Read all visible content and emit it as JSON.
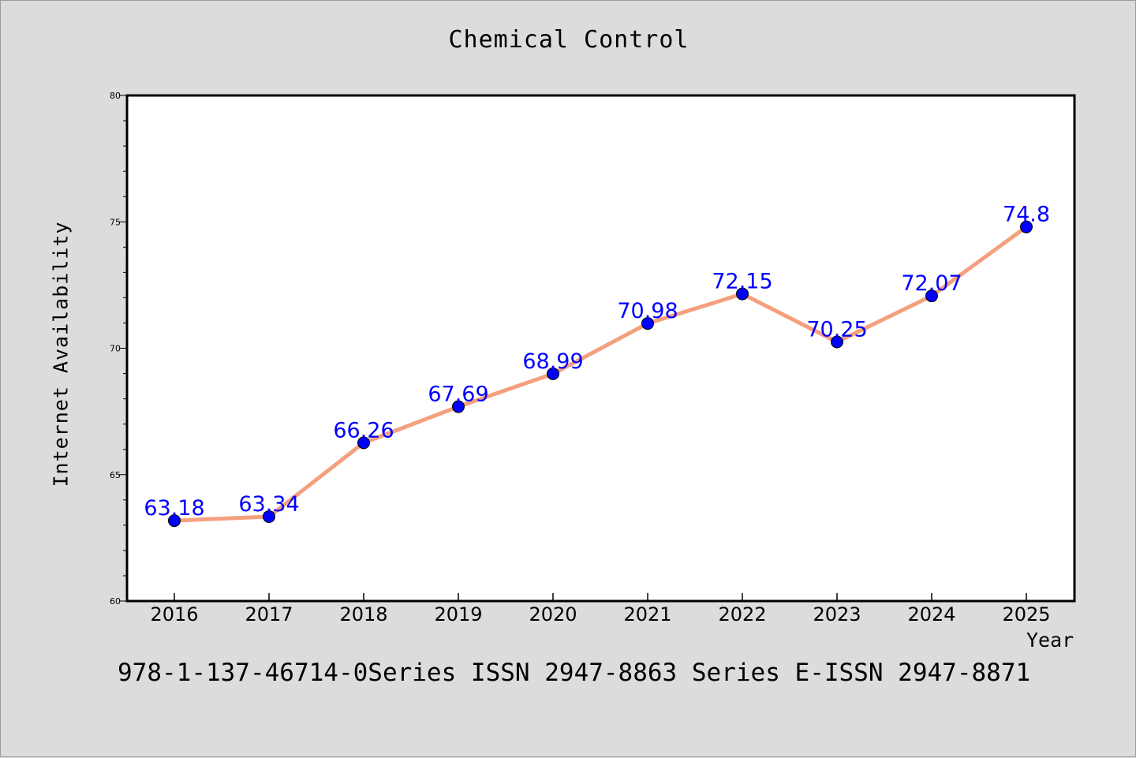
{
  "chart_data": {
    "type": "line",
    "title": "Chemical Control",
    "xlabel": "Year",
    "ylabel": "Internet Availability",
    "categories": [
      "2016",
      "2017",
      "2018",
      "2019",
      "2020",
      "2021",
      "2022",
      "2023",
      "2024",
      "2025"
    ],
    "series": [
      {
        "values": [
          63.18,
          63.34,
          66.26,
          67.69,
          68.99,
          70.98,
          72.15,
          70.25,
          72.07,
          74.8
        ],
        "data_labels": [
          "63.18",
          "63.34",
          "66.26",
          "67.69",
          "68.99",
          "70.98",
          "72.15",
          "70.25",
          "72.07",
          "74.8"
        ],
        "line_color": "#f4a07e",
        "marker_color": "#0000ff",
        "label_color": "#0000ff"
      }
    ],
    "ylim": [
      60,
      80
    ],
    "yticks": [
      "60",
      "65",
      "70",
      "75",
      "80"
    ],
    "grid": false,
    "legend": "none"
  },
  "footer": {
    "text": "978-1-137-46714-0Series ISSN 2947-8863 Series E-ISSN 2947-8871"
  }
}
